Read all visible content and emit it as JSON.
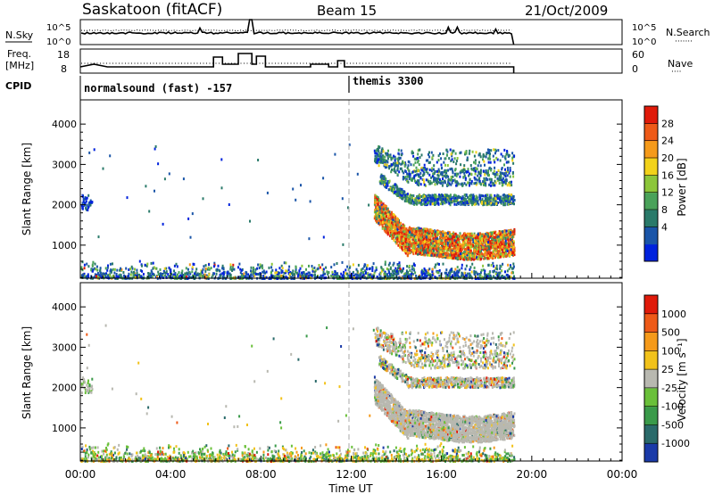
{
  "header": {
    "title": "Saskatoon (fitACF)",
    "beam": "Beam 15",
    "date": "21/Oct/2009"
  },
  "aux_panels": {
    "nsky_label": "N.Sky",
    "nsearch_label": "N.Search",
    "nsearch_marker": "·······",
    "noise_ticks_left": [
      "10^5",
      "10^0"
    ],
    "noise_ticks_right": [
      "10^5",
      "10^0"
    ],
    "freq_label_top": "Freq.",
    "freq_label_bottom": "[MHz]",
    "freq_ticks": [
      "18",
      "8"
    ],
    "nave_label": "Nave",
    "nave_marker": "····",
    "nave_ticks": [
      "60",
      "0"
    ],
    "cpid_label": "CPID",
    "cpid_1": "normalsound (fast) -157",
    "cpid_2": "themis 3300",
    "cpid_switch_hour": 12.0
  },
  "chart_data": [
    {
      "type": "heatmap",
      "panel": "power",
      "ylabel": "Slant Range [km]",
      "xlabel": "",
      "ylim": [
        180,
        4600
      ],
      "xlim_hours": [
        0,
        24
      ],
      "yticks": [
        "1000",
        "2000",
        "3000",
        "4000"
      ],
      "yticks_values": [
        1000,
        2000,
        3000,
        4000
      ],
      "colorbar": {
        "label": "Power [dB]",
        "ticks": [
          "28",
          "24",
          "20",
          "16",
          "12",
          "8",
          "4"
        ],
        "colors": [
          "#0022dd",
          "#1a55a8",
          "#2a7a6a",
          "#4aa25a",
          "#8cc63a",
          "#f2d21a",
          "#f59a1a",
          "#ee5a18",
          "#e01a0a"
        ]
      },
      "data_end_hour": 19.2,
      "features": [
        {
          "name": "near-range clutter",
          "hours": [
            0,
            19.2
          ],
          "range_km": [
            200,
            600
          ]
        },
        {
          "name": "main echo band",
          "hours": [
            13.0,
            19.2
          ],
          "range_km": [
            800,
            1600
          ]
        },
        {
          "name": "multihop band 1",
          "hours": [
            13.2,
            19.2
          ],
          "range_km": [
            1900,
            2300
          ]
        },
        {
          "name": "multihop band 2",
          "hours": [
            13.0,
            19.2
          ],
          "range_km": [
            2400,
            3200
          ]
        },
        {
          "name": "early scatter",
          "hours": [
            0.0,
            0.5
          ],
          "range_km": [
            1900,
            2300
          ]
        }
      ]
    },
    {
      "type": "heatmap",
      "panel": "velocity",
      "ylabel": "Slant Range [km]",
      "xlabel": "Time UT",
      "ylim": [
        180,
        4600
      ],
      "xlim_hours": [
        0,
        24
      ],
      "yticks": [
        "1000",
        "2000",
        "3000",
        "4000"
      ],
      "yticks_values": [
        1000,
        2000,
        3000,
        4000
      ],
      "xticks": [
        "00:00",
        "04:00",
        "08:00",
        "12:00",
        "16:00",
        "20:00",
        "00:00"
      ],
      "xticks_hours": [
        0,
        4,
        8,
        12,
        16,
        20,
        24
      ],
      "colorbar": {
        "label": "Velocity [m s-1]",
        "ticks": [
          "1000",
          "500",
          "100",
          "25",
          "-25",
          "-100",
          "-500",
          "-1000"
        ],
        "colors": [
          "#1a3aa8",
          "#2a6a6a",
          "#3a9a4a",
          "#6ac03a",
          "#b8b8b0",
          "#f2c21a",
          "#f59a1a",
          "#ee5a18",
          "#e01a0a"
        ]
      },
      "data_end_hour": 19.2
    }
  ],
  "axis_titles": {
    "slant_range": "Slant Range [km]",
    "time": "Time UT",
    "power": "Power [dB]",
    "velocity": "Velocity",
    "velocity_unit": "[m s⁻¹]"
  }
}
